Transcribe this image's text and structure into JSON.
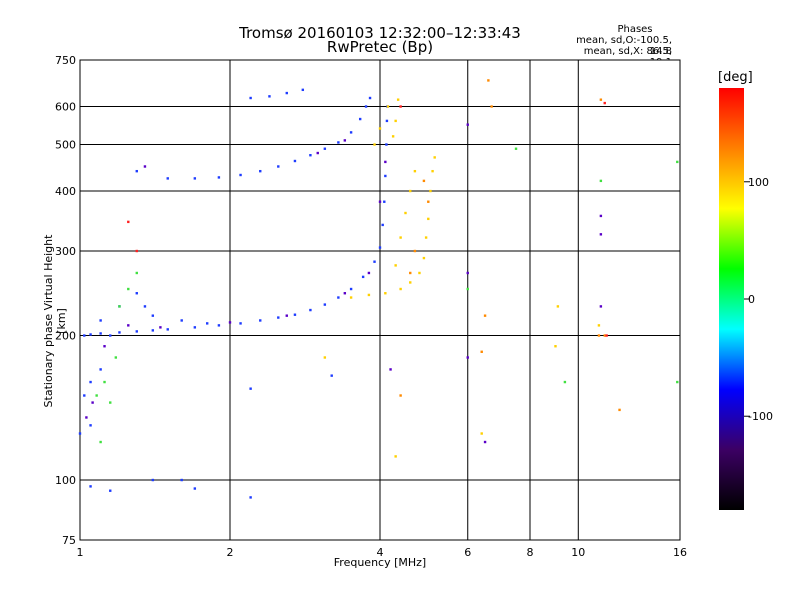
{
  "header": {
    "title_line1": "Tromsø 20160103 12:32:00–12:33:43",
    "title_line2": "RwPretec (Bp)",
    "stats_title": "Phases",
    "stats_o": "mean, sd,O:-100.5, 14.8",
    "stats_x": "mean, sd,X:  86.5, 19.1"
  },
  "colorbar": {
    "unit": "[deg]",
    "ticks": [
      "100",
      "0",
      "-100"
    ],
    "tick_values": [
      100,
      0,
      -100
    ],
    "range": [
      -180,
      180
    ],
    "colors": [
      "#000000",
      "#3c0064",
      "#0000ff",
      "#00ffff",
      "#00ff00",
      "#ffff00",
      "#ff8000",
      "#ff0000"
    ]
  },
  "chart_data": {
    "type": "scatter",
    "title": "Tromsø 20160103 12:32:00–12:33:43",
    "subtitle": "RwPretec (Bp)",
    "xlabel": "Frequency [MHz]",
    "ylabel": "Stationary phase Virtual Height [km]",
    "xscale": "log",
    "yscale": "log",
    "xlim": [
      1,
      16
    ],
    "ylim": [
      75,
      750
    ],
    "xticks": [
      1,
      2,
      4,
      6,
      8,
      10,
      16
    ],
    "xtick_labels": [
      "1",
      "2",
      "4",
      "6",
      "8",
      "10",
      "16"
    ],
    "yticks": [
      75,
      100,
      200,
      300,
      400,
      500,
      600,
      750
    ],
    "ytick_labels": [
      "75",
      "100",
      "200",
      "300",
      "400",
      "500",
      "600",
      "750"
    ],
    "grid": true,
    "series": [
      {
        "color": "#1e3cff",
        "points": [
          [
            1.02,
            200
          ],
          [
            1.05,
            201
          ],
          [
            1.1,
            202
          ],
          [
            1.2,
            203
          ],
          [
            1.3,
            204
          ],
          [
            1.4,
            205
          ],
          [
            1.5,
            206
          ],
          [
            1.7,
            208
          ],
          [
            1.9,
            210
          ],
          [
            2.1,
            212
          ],
          [
            2.3,
            215
          ],
          [
            2.5,
            218
          ],
          [
            2.7,
            221
          ],
          [
            2.9,
            226
          ],
          [
            3.1,
            232
          ],
          [
            3.3,
            240
          ],
          [
            3.5,
            250
          ],
          [
            3.7,
            265
          ],
          [
            3.9,
            285
          ],
          [
            4.0,
            305
          ],
          [
            4.05,
            340
          ],
          [
            4.08,
            380
          ],
          [
            4.1,
            430
          ],
          [
            4.12,
            500
          ],
          [
            4.13,
            560
          ],
          [
            4.14,
            600
          ],
          [
            1.3,
            440
          ],
          [
            1.5,
            425
          ],
          [
            1.7,
            425
          ],
          [
            1.9,
            427
          ],
          [
            2.1,
            432
          ],
          [
            2.3,
            440
          ],
          [
            2.5,
            450
          ],
          [
            2.7,
            462
          ],
          [
            2.9,
            475
          ],
          [
            3.1,
            490
          ],
          [
            3.3,
            505
          ],
          [
            3.5,
            530
          ],
          [
            3.65,
            565
          ],
          [
            3.75,
            600
          ],
          [
            3.82,
            625
          ],
          [
            2.2,
            625
          ],
          [
            2.4,
            630
          ],
          [
            2.6,
            640
          ],
          [
            2.8,
            650
          ],
          [
            1.02,
            150
          ],
          [
            1.05,
            160
          ],
          [
            1.1,
            170
          ],
          [
            1.15,
            200
          ],
          [
            1.2,
            230
          ],
          [
            1.1,
            215
          ],
          [
            1.3,
            245
          ],
          [
            1.35,
            230
          ],
          [
            1.4,
            220
          ],
          [
            1.6,
            215
          ],
          [
            1.8,
            212
          ],
          [
            1.05,
            97
          ],
          [
            1.15,
            95
          ],
          [
            1.4,
            100
          ],
          [
            1.6,
            100
          ],
          [
            1.7,
            96
          ],
          [
            2.2,
            92
          ],
          [
            2.2,
            155
          ],
          [
            3.2,
            165
          ],
          [
            1.0,
            125
          ],
          [
            1.05,
            130
          ]
        ]
      },
      {
        "color": "#5a00c8",
        "points": [
          [
            1.03,
            135
          ],
          [
            1.06,
            145
          ],
          [
            1.12,
            190
          ],
          [
            1.25,
            210
          ],
          [
            1.45,
            208
          ],
          [
            2.0,
            213
          ],
          [
            2.6,
            220
          ],
          [
            3.4,
            245
          ],
          [
            3.8,
            270
          ],
          [
            4.0,
            380
          ],
          [
            4.1,
            460
          ],
          [
            3.0,
            480
          ],
          [
            3.4,
            510
          ],
          [
            1.35,
            450
          ],
          [
            6.0,
            180
          ],
          [
            6.5,
            120
          ],
          [
            6.0,
            270
          ],
          [
            11.1,
            355
          ],
          [
            11.1,
            325
          ],
          [
            11.1,
            230
          ],
          [
            6.0,
            550
          ],
          [
            4.2,
            170
          ]
        ]
      },
      {
        "color": "#ffd000",
        "points": [
          [
            3.5,
            240
          ],
          [
            3.8,
            243
          ],
          [
            4.1,
            245
          ],
          [
            4.4,
            250
          ],
          [
            4.6,
            258
          ],
          [
            4.8,
            270
          ],
          [
            4.9,
            290
          ],
          [
            4.95,
            320
          ],
          [
            5.0,
            350
          ],
          [
            5.05,
            400
          ],
          [
            5.1,
            440
          ],
          [
            5.15,
            470
          ],
          [
            4.3,
            280
          ],
          [
            4.4,
            320
          ],
          [
            4.5,
            360
          ],
          [
            4.6,
            400
          ],
          [
            4.7,
            440
          ],
          [
            4.25,
            520
          ],
          [
            4.3,
            560
          ],
          [
            4.35,
            620
          ],
          [
            3.9,
            500
          ],
          [
            4.0,
            540
          ],
          [
            4.15,
            600
          ],
          [
            6.4,
            125
          ],
          [
            4.3,
            112
          ],
          [
            3.1,
            180
          ],
          [
            9.0,
            190
          ],
          [
            9.1,
            230
          ],
          [
            11.0,
            210
          ]
        ]
      },
      {
        "color": "#ff8a00",
        "points": [
          [
            4.9,
            420
          ],
          [
            5.0,
            380
          ],
          [
            4.7,
            300
          ],
          [
            4.6,
            270
          ],
          [
            6.6,
            680
          ],
          [
            6.7,
            600
          ],
          [
            6.5,
            220
          ],
          [
            6.4,
            185
          ],
          [
            4.4,
            150
          ],
          [
            11.1,
            620
          ],
          [
            11.3,
            200
          ],
          [
            12.1,
            140
          ],
          [
            11.0,
            200
          ]
        ]
      },
      {
        "color": "#40e040",
        "points": [
          [
            1.08,
            150
          ],
          [
            1.12,
            160
          ],
          [
            1.15,
            145
          ],
          [
            1.2,
            230
          ],
          [
            1.25,
            250
          ],
          [
            1.3,
            270
          ],
          [
            1.18,
            180
          ],
          [
            1.1,
            120
          ],
          [
            15.8,
            160
          ],
          [
            15.8,
            460
          ],
          [
            7.5,
            490
          ],
          [
            6.0,
            250
          ],
          [
            11.1,
            420
          ],
          [
            9.4,
            160
          ]
        ]
      },
      {
        "color": "#ff2020",
        "points": [
          [
            1.3,
            300
          ],
          [
            1.25,
            345
          ],
          [
            4.4,
            600
          ],
          [
            11.3,
            610
          ],
          [
            11.4,
            200
          ]
        ]
      }
    ]
  }
}
